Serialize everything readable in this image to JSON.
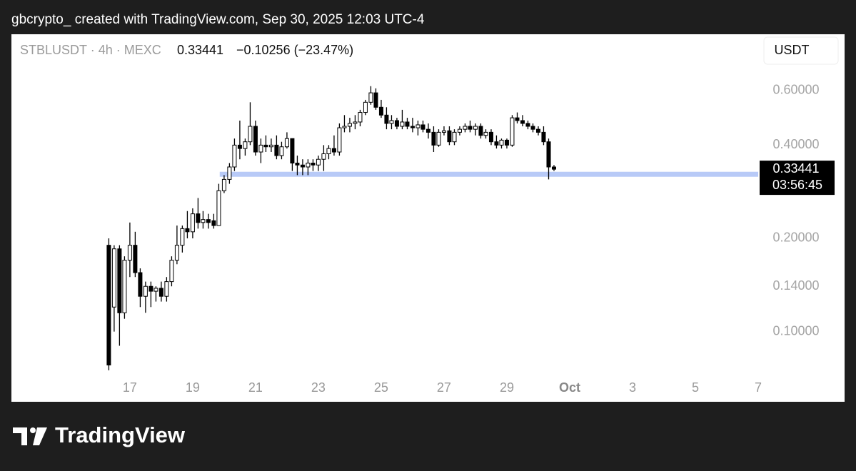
{
  "chart_data": {
    "type": "candlestick",
    "header": "gbcrypto_ created with TradingView.com, Sep 30, 2025 12:03 UTC-4",
    "symbol": "STBLUSDT · 4h · MEXC",
    "change": "−0.10256 (−23.47%)",
    "currency": "USDT",
    "countdown": "03:56:45",
    "brand": "TradingView",
    "log_scale": true,
    "up_color": "#ffffff",
    "down_color": "#000000",
    "x": [
      16.33,
      16.5,
      16.67,
      16.83,
      17,
      17.17,
      17.33,
      17.5,
      17.67,
      17.83,
      18,
      18.17,
      18.33,
      18.5,
      18.67,
      18.83,
      19,
      19.17,
      19.33,
      19.5,
      19.67,
      19.83,
      20,
      20.17,
      20.33,
      20.5,
      20.67,
      20.83,
      21,
      21.17,
      21.33,
      21.5,
      21.67,
      21.83,
      22,
      22.17,
      22.33,
      22.5,
      22.67,
      22.83,
      23,
      23.17,
      23.33,
      23.5,
      23.67,
      23.83,
      24,
      24.17,
      24.33,
      24.5,
      24.67,
      24.83,
      25,
      25.17,
      25.33,
      25.5,
      25.67,
      25.83,
      26,
      26.17,
      26.33,
      26.5,
      26.67,
      26.83,
      27,
      27.17,
      27.33,
      27.5,
      27.67,
      27.83,
      28,
      28.17,
      28.33,
      28.5,
      28.67,
      28.83,
      29,
      29.17,
      29.33,
      29.5,
      29.67,
      29.83,
      30,
      30.17,
      30.33,
      30.5
    ],
    "open": [
      0.19,
      0.12,
      0.185,
      0.115,
      0.17,
      0.19,
      0.155,
      0.13,
      0.14,
      0.135,
      0.138,
      0.13,
      0.145,
      0.17,
      0.19,
      0.215,
      0.21,
      0.24,
      0.225,
      0.23,
      0.228,
      0.22,
      0.285,
      0.31,
      0.34,
      0.4,
      0.39,
      0.41,
      0.46,
      0.38,
      0.4,
      0.395,
      0.4,
      0.37,
      0.395,
      0.42,
      0.35,
      0.345,
      0.34,
      0.35,
      0.345,
      0.36,
      0.375,
      0.39,
      0.38,
      0.455,
      0.46,
      0.47,
      0.475,
      0.51,
      0.55,
      0.59,
      0.53,
      0.5,
      0.47,
      0.48,
      0.46,
      0.475,
      0.46,
      0.455,
      0.465,
      0.45,
      0.44,
      0.4,
      0.44,
      0.445,
      0.41,
      0.44,
      0.45,
      0.46,
      0.45,
      0.46,
      0.43,
      0.44,
      0.41,
      0.4,
      0.415,
      0.4,
      0.49,
      0.48,
      0.47,
      0.46,
      0.45,
      0.44,
      0.41,
      0.34
    ],
    "high": [
      0.2,
      0.19,
      0.19,
      0.175,
      0.225,
      0.21,
      0.16,
      0.145,
      0.145,
      0.14,
      0.145,
      0.15,
      0.175,
      0.22,
      0.22,
      0.245,
      0.25,
      0.27,
      0.245,
      0.24,
      0.24,
      0.3,
      0.32,
      0.35,
      0.42,
      0.48,
      0.42,
      0.55,
      0.48,
      0.42,
      0.43,
      0.42,
      0.43,
      0.41,
      0.44,
      0.42,
      0.37,
      0.36,
      0.36,
      0.36,
      0.37,
      0.4,
      0.4,
      0.43,
      0.47,
      0.5,
      0.49,
      0.5,
      0.52,
      0.56,
      0.62,
      0.61,
      0.56,
      0.53,
      0.5,
      0.49,
      0.52,
      0.49,
      0.49,
      0.48,
      0.48,
      0.47,
      0.46,
      0.45,
      0.46,
      0.46,
      0.45,
      0.46,
      0.47,
      0.48,
      0.47,
      0.47,
      0.45,
      0.45,
      0.43,
      0.42,
      0.42,
      0.5,
      0.51,
      0.5,
      0.48,
      0.47,
      0.46,
      0.46,
      0.42,
      0.345
    ],
    "low": [
      0.075,
      0.1,
      0.09,
      0.11,
      0.15,
      0.15,
      0.12,
      0.115,
      0.12,
      0.125,
      0.125,
      0.125,
      0.14,
      0.165,
      0.18,
      0.2,
      0.2,
      0.215,
      0.215,
      0.215,
      0.215,
      0.22,
      0.28,
      0.3,
      0.33,
      0.36,
      0.37,
      0.4,
      0.37,
      0.35,
      0.38,
      0.38,
      0.36,
      0.36,
      0.39,
      0.33,
      0.32,
      0.32,
      0.32,
      0.33,
      0.33,
      0.33,
      0.36,
      0.37,
      0.37,
      0.44,
      0.44,
      0.45,
      0.46,
      0.5,
      0.54,
      0.52,
      0.49,
      0.45,
      0.45,
      0.45,
      0.45,
      0.45,
      0.44,
      0.43,
      0.44,
      0.42,
      0.38,
      0.395,
      0.43,
      0.4,
      0.4,
      0.43,
      0.44,
      0.44,
      0.43,
      0.42,
      0.42,
      0.4,
      0.39,
      0.39,
      0.39,
      0.395,
      0.47,
      0.46,
      0.45,
      0.44,
      0.43,
      0.4,
      0.31,
      0.33
    ],
    "close": [
      0.078,
      0.185,
      0.115,
      0.17,
      0.19,
      0.155,
      0.13,
      0.14,
      0.135,
      0.138,
      0.13,
      0.145,
      0.17,
      0.19,
      0.215,
      0.21,
      0.24,
      0.225,
      0.23,
      0.225,
      0.22,
      0.285,
      0.31,
      0.34,
      0.4,
      0.39,
      0.41,
      0.46,
      0.38,
      0.4,
      0.395,
      0.4,
      0.37,
      0.395,
      0.42,
      0.35,
      0.345,
      0.34,
      0.35,
      0.345,
      0.36,
      0.375,
      0.39,
      0.38,
      0.455,
      0.46,
      0.47,
      0.475,
      0.51,
      0.55,
      0.59,
      0.53,
      0.5,
      0.47,
      0.48,
      0.46,
      0.475,
      0.46,
      0.455,
      0.465,
      0.45,
      0.44,
      0.4,
      0.44,
      0.445,
      0.41,
      0.44,
      0.45,
      0.46,
      0.45,
      0.46,
      0.43,
      0.44,
      0.41,
      0.4,
      0.415,
      0.4,
      0.49,
      0.48,
      0.47,
      0.46,
      0.45,
      0.44,
      0.41,
      0.34,
      0.33441
    ],
    "hline": {
      "value": 0.322,
      "x_start": 19.86,
      "color": "#b8caf7"
    },
    "xlim": [
      13.23,
      37
    ],
    "xticks": [
      17,
      19,
      21,
      23,
      25,
      27,
      29,
      {
        "value": 31,
        "label": "Oct"
      },
      {
        "value": 33,
        "label": "3"
      },
      {
        "value": 35,
        "label": "5"
      },
      {
        "value": 37,
        "label": "7"
      }
    ],
    "ylim": [
      0.0707,
      0.912
    ],
    "yticks": [
      {
        "value": 0.6,
        "label": "0.60000"
      },
      {
        "value": 0.4,
        "label": "0.40000"
      },
      {
        "value": 0.2,
        "label": "0.20000"
      },
      {
        "value": 0.14,
        "label": "0.14000"
      },
      {
        "value": 0.1,
        "label": "0.10000"
      }
    ]
  }
}
